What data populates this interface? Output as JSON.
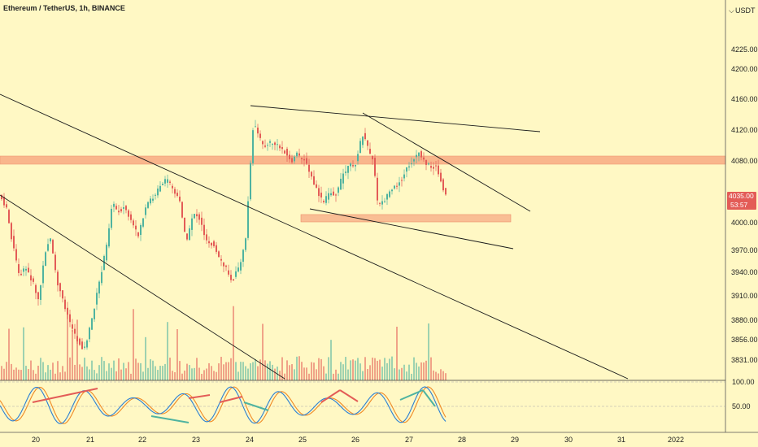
{
  "header": {
    "title": "Ethereum / TetherUS, 1h, BINANCE",
    "currency": "USDT"
  },
  "colors": {
    "background": "#fff8c4",
    "bull": "#4fb3a0",
    "bear": "#e35c57",
    "resistance_zone": "#f7a07a",
    "support_zone": "#f9b48c",
    "price_tag": "#e35c57",
    "trendline": "#1a1a1a",
    "stoch_k": "#2a7fd4",
    "stoch_d": "#f08a24"
  },
  "price_tag": {
    "price": "4035.00",
    "countdown": "53:57"
  },
  "chart_data": {
    "type": "candlestick",
    "title": "Ethereum / TetherUS, 1h, BINANCE",
    "y_ticks": [
      "4225.00",
      "4200.00",
      "4160.00",
      "4120.00",
      "4080.00",
      "4040.00",
      "4000.00",
      "3970.00",
      "3940.00",
      "3910.00",
      "3880.00",
      "3856.00",
      "3831.00"
    ],
    "x_ticks": [
      "20",
      "21",
      "22",
      "23",
      "24",
      "25",
      "26",
      "27",
      "28",
      "29",
      "30",
      "31",
      "2022"
    ],
    "zones": [
      {
        "name": "resistance",
        "from": 4072,
        "to": 4086
      },
      {
        "name": "support",
        "from": 4002,
        "to": 4012
      }
    ],
    "indicator": {
      "type": "stochastic",
      "levels": [
        "100.00",
        "50.00"
      ]
    }
  }
}
